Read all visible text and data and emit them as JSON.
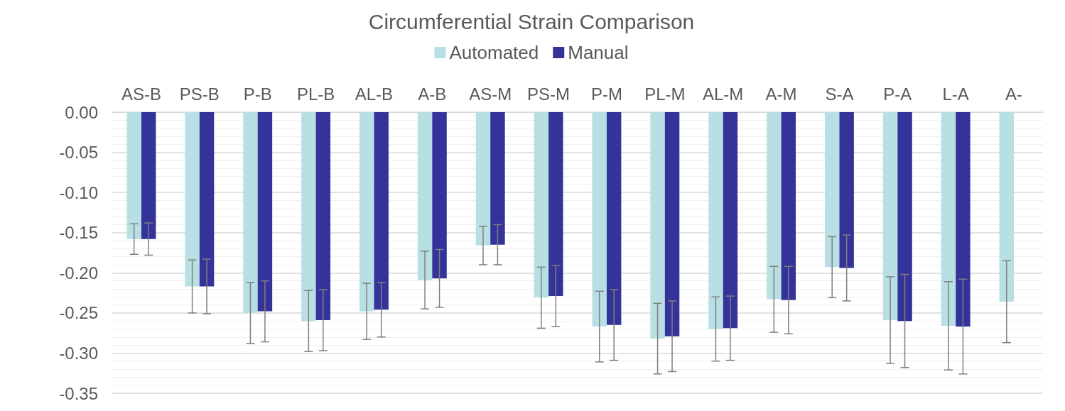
{
  "chart_data": {
    "type": "bar",
    "title": "Circumferential Strain Comparison",
    "categories": [
      "AS-B",
      "PS-B",
      "P-B",
      "PL-B",
      "AL-B",
      "A-B",
      "AS-M",
      "PS-M",
      "P-M",
      "PL-M",
      "AL-M",
      "A-M",
      "S-A",
      "P-A",
      "L-A",
      "A-"
    ],
    "series": [
      {
        "name": "Automated",
        "color": "#b8dfe3",
        "values": [
          -0.158,
          -0.217,
          -0.25,
          -0.26,
          -0.248,
          -0.209,
          -0.166,
          -0.231,
          -0.267,
          -0.282,
          -0.27,
          -0.233,
          -0.193,
          -0.259,
          -0.266,
          -0.236
        ],
        "errors": [
          0.019,
          0.033,
          0.038,
          0.038,
          0.035,
          0.036,
          0.024,
          0.038,
          0.044,
          0.044,
          0.04,
          0.041,
          0.038,
          0.054,
          0.055,
          0.051
        ]
      },
      {
        "name": "Manual",
        "color": "#343399",
        "values": [
          -0.158,
          -0.217,
          -0.248,
          -0.259,
          -0.246,
          -0.207,
          -0.165,
          -0.229,
          -0.265,
          -0.279,
          -0.269,
          -0.234,
          -0.194,
          -0.26,
          -0.267,
          null
        ],
        "errors": [
          0.02,
          0.034,
          0.038,
          0.038,
          0.034,
          0.036,
          0.025,
          0.038,
          0.044,
          0.044,
          0.04,
          0.042,
          0.041,
          0.058,
          0.059,
          null
        ]
      }
    ],
    "ylim": [
      -0.35,
      0
    ],
    "yticks": [
      {
        "value": 0,
        "label": "0.00"
      },
      {
        "value": -0.05,
        "label": "-0.05"
      },
      {
        "value": -0.1,
        "label": "-0.10"
      },
      {
        "value": -0.15,
        "label": "-0.15"
      },
      {
        "value": -0.2,
        "label": "-0.20"
      },
      {
        "value": -0.25,
        "label": "-0.25"
      },
      {
        "value": -0.3,
        "label": "-0.30"
      },
      {
        "value": -0.35,
        "label": "-0.35"
      }
    ],
    "grid": true,
    "legend": "top"
  }
}
